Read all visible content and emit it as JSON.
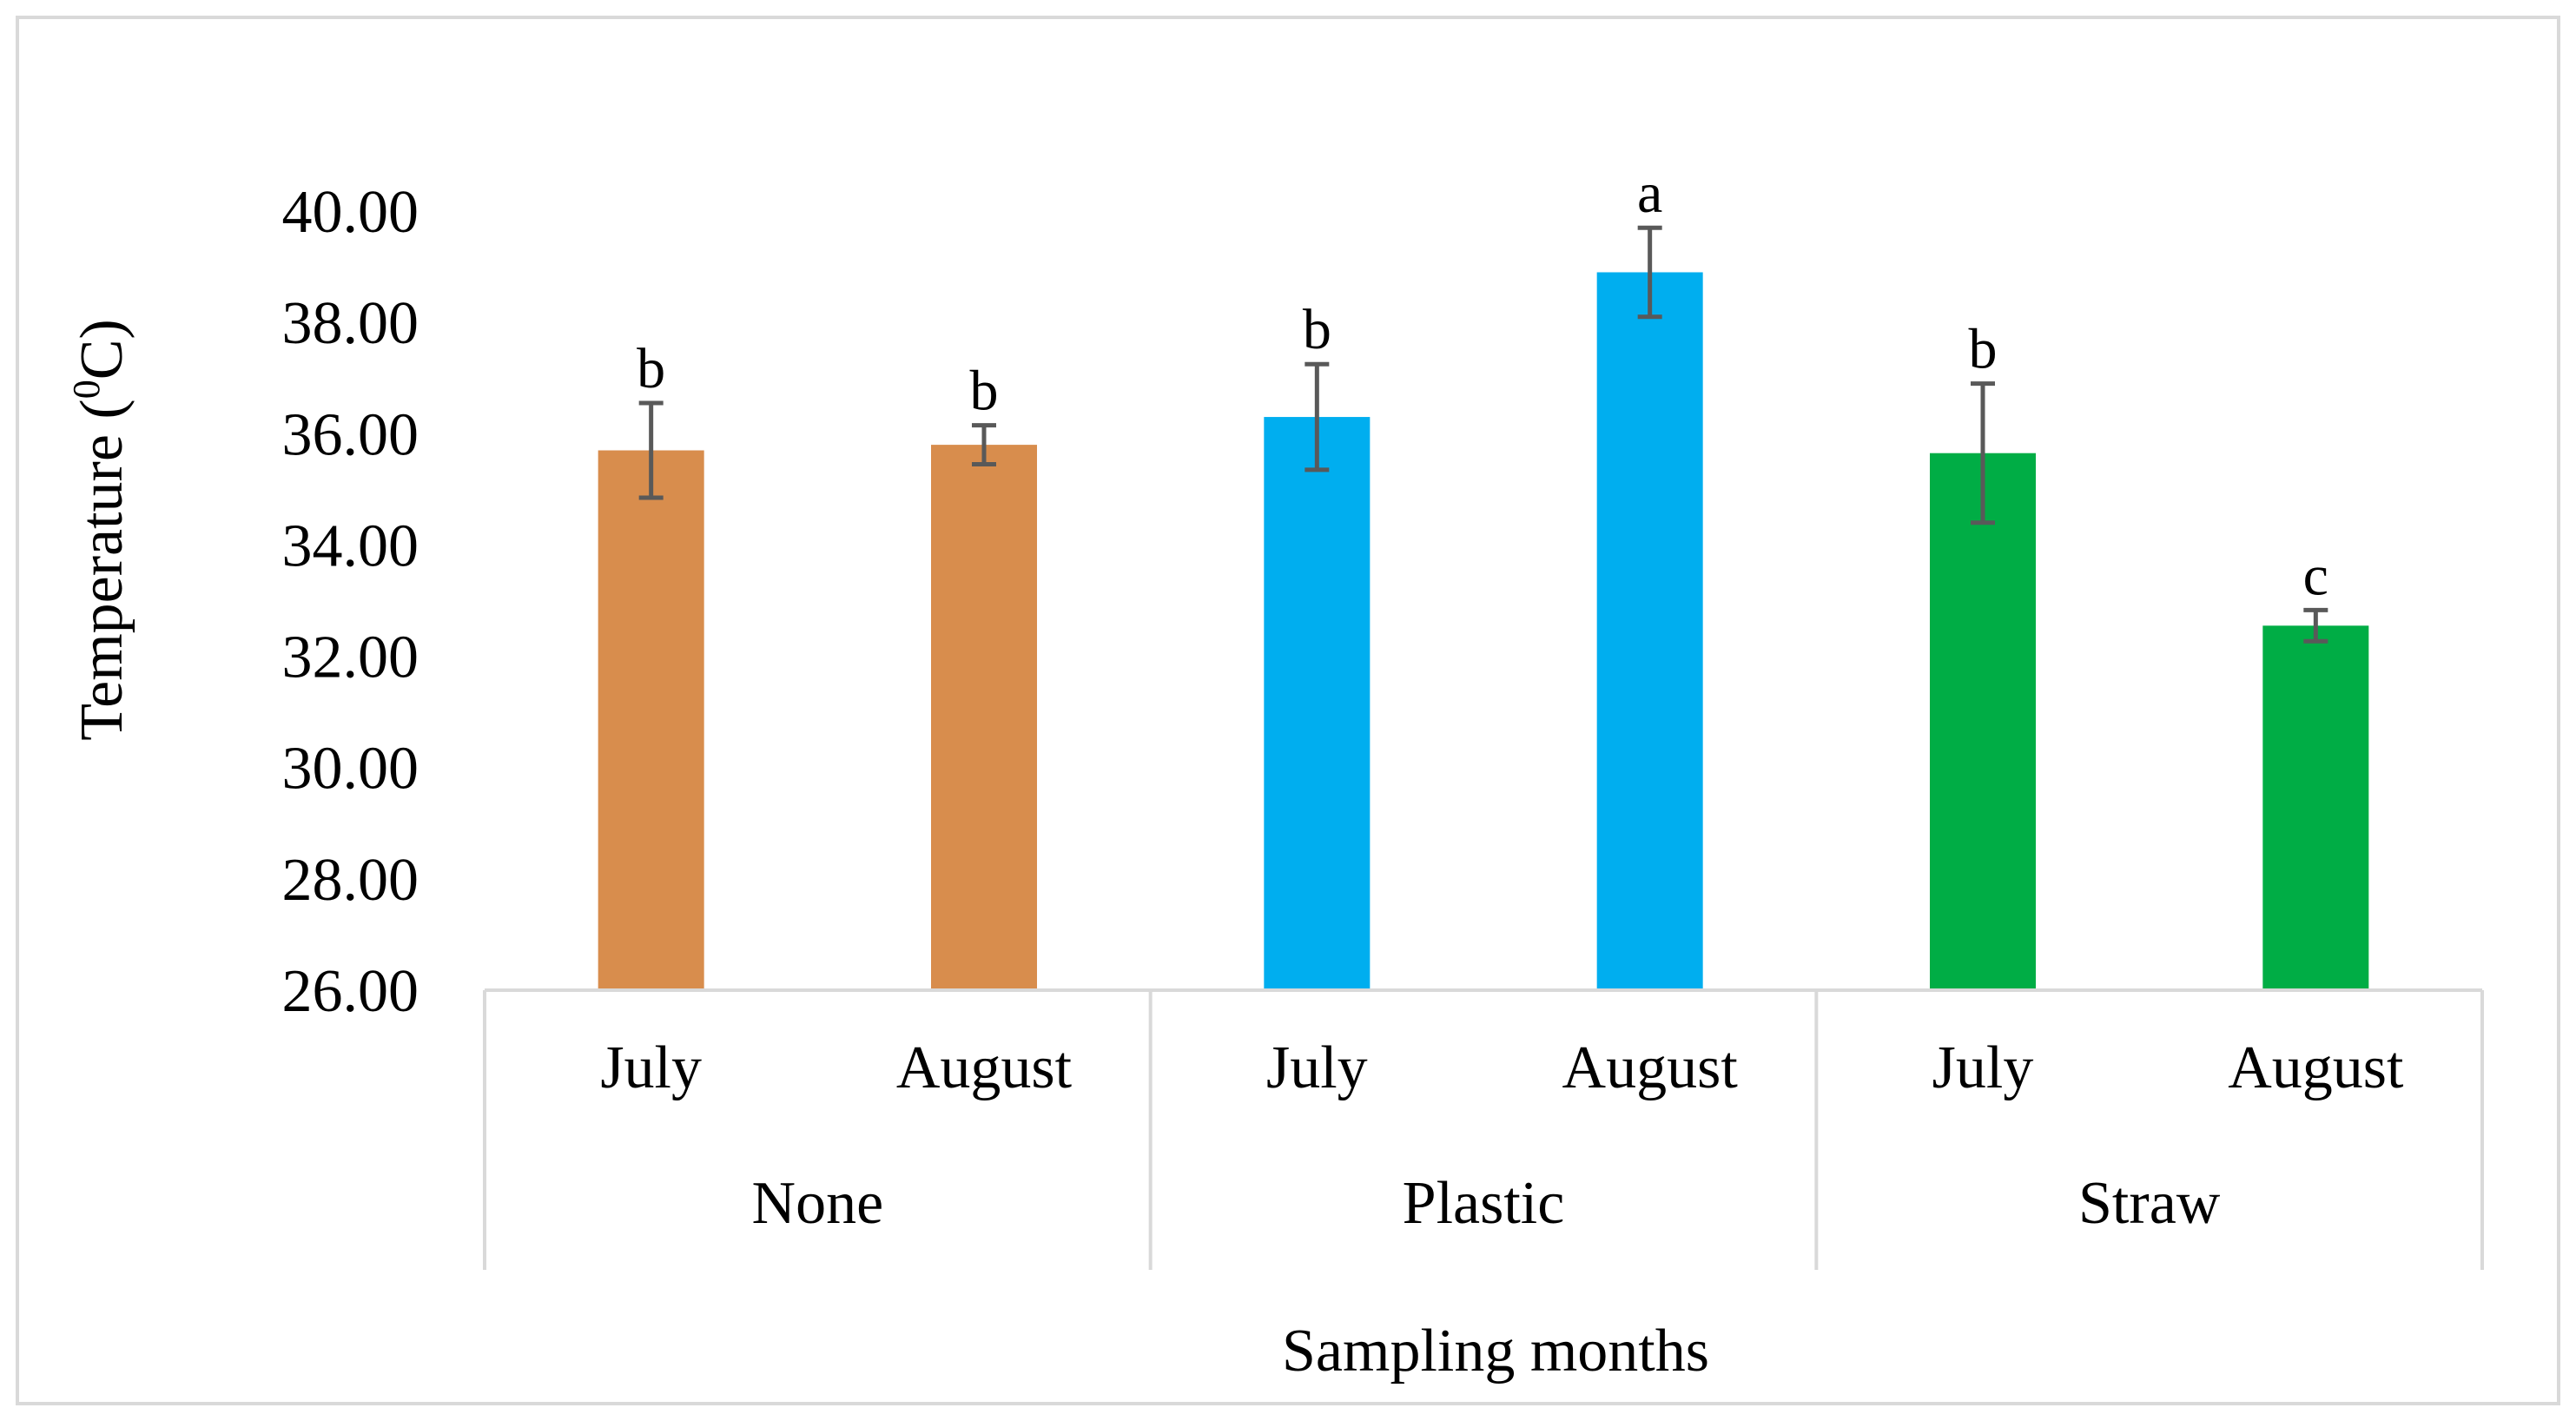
{
  "chart_data": {
    "type": "bar",
    "title": "",
    "xlabel": "Sampling months",
    "ylabel_main": "Temperature (",
    "ylabel_sup": "0",
    "ylabel_unit": "C)",
    "ylim": [
      26,
      40
    ],
    "yticks": [
      "26.00",
      "28.00",
      "30.00",
      "32.00",
      "34.00",
      "36.00",
      "38.00",
      "40.00"
    ],
    "groups": [
      {
        "name": "None",
        "color": "#D88D4D"
      },
      {
        "name": "Plastic",
        "color": "#00AEEF"
      },
      {
        "name": "Straw",
        "color": "#00AD45"
      }
    ],
    "bars": [
      {
        "group": "None",
        "month": "July",
        "value": 35.7,
        "error": 0.85,
        "label": "b"
      },
      {
        "group": "None",
        "month": "August",
        "value": 35.8,
        "error": 0.35,
        "label": "b"
      },
      {
        "group": "Plastic",
        "month": "July",
        "value": 36.3,
        "error": 0.95,
        "label": "b"
      },
      {
        "group": "Plastic",
        "month": "August",
        "value": 38.9,
        "error": 0.8,
        "label": "a"
      },
      {
        "group": "Straw",
        "month": "July",
        "value": 35.65,
        "error": 1.25,
        "label": "b"
      },
      {
        "group": "Straw",
        "month": "August",
        "value": 32.55,
        "error": 0.28,
        "label": "c"
      }
    ],
    "grid": false,
    "error_bar_color": "#595959"
  }
}
